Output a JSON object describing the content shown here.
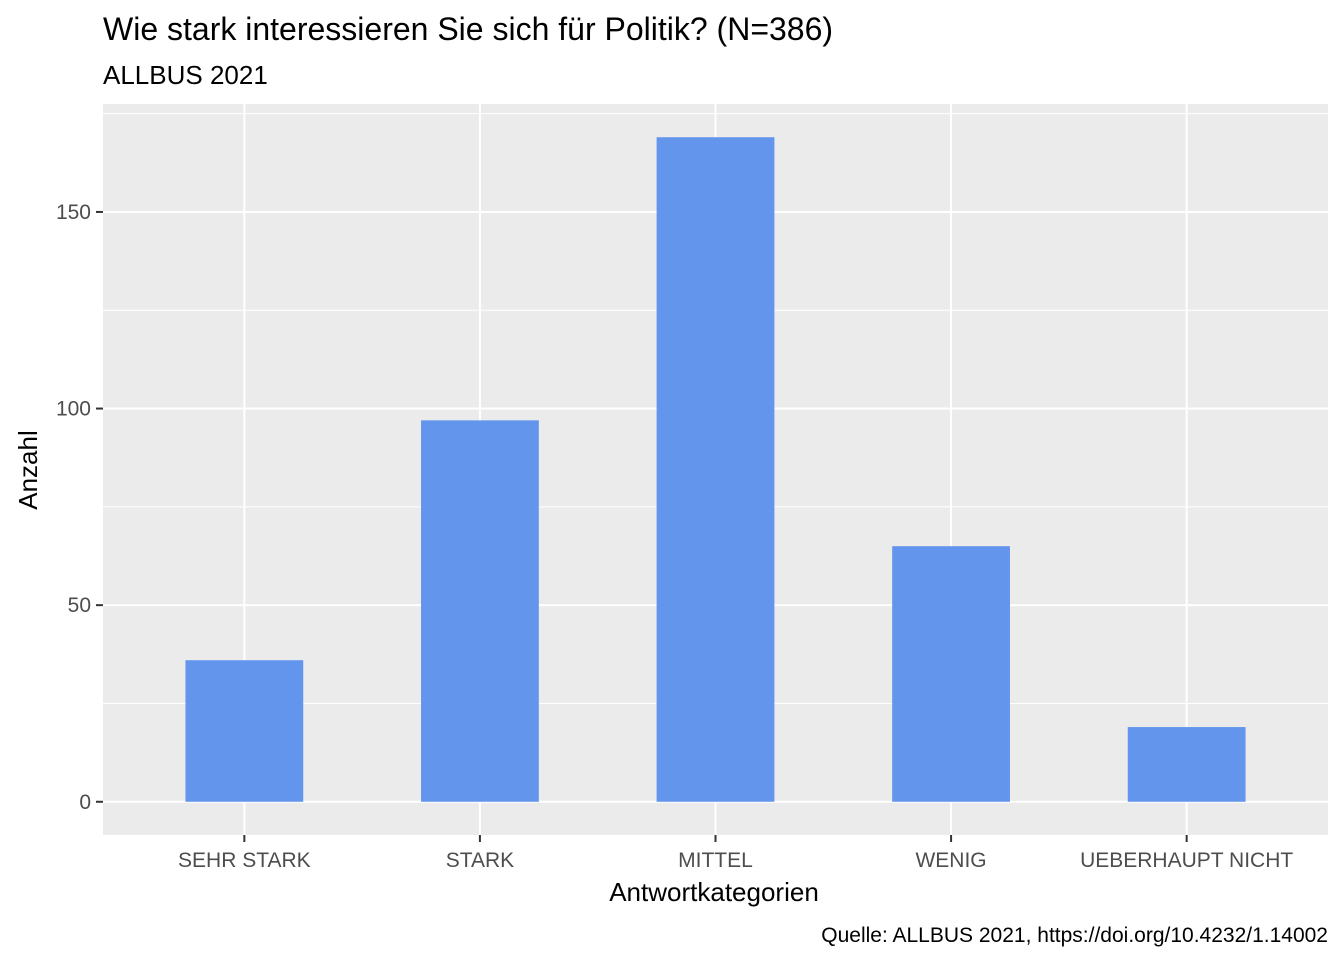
{
  "chart_data": {
    "type": "bar",
    "title": "Wie stark interessieren Sie sich für Politik? (N=386)",
    "subtitle": "ALLBUS 2021",
    "xlabel": "Antwortkategorien",
    "ylabel": "Anzahl",
    "caption": "Quelle: ALLBUS 2021, https://doi.org/10.4232/1.14002",
    "categories": [
      "SEHR STARK",
      "STARK",
      "MITTEL",
      "WENIG",
      "UEBERHAUPT NICHT"
    ],
    "values": [
      36,
      97,
      169,
      65,
      19
    ],
    "yticks": [
      0,
      50,
      100,
      150
    ],
    "ylim": [
      -8.45,
      177.45
    ],
    "grid": true,
    "legend": "none",
    "colors": {
      "bar": "#6495ED",
      "panel": "#EBEBEB",
      "grid": "#FFFFFF",
      "tick_text": "#4D4D4D",
      "tick_mark": "#333333"
    }
  }
}
